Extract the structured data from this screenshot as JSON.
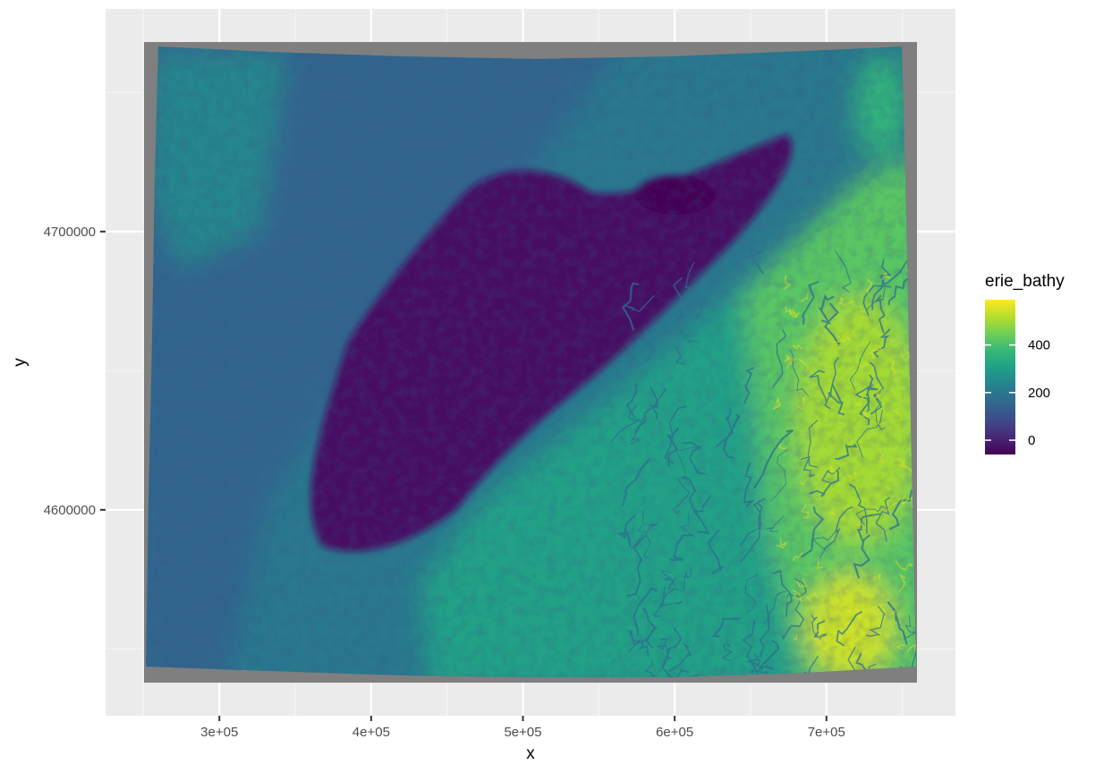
{
  "chart_data": {
    "type": "heatmap",
    "xlabel": "x",
    "ylabel": "y",
    "xlim": [
      225000,
      785000
    ],
    "ylim": [
      4526000,
      4780000
    ],
    "x_ticks": [
      {
        "value": 300000,
        "label": "3e+05"
      },
      {
        "value": 400000,
        "label": "4e+05"
      },
      {
        "value": 500000,
        "label": "5e+05"
      },
      {
        "value": 600000,
        "label": "6e+05"
      },
      {
        "value": 700000,
        "label": "7e+05"
      }
    ],
    "y_ticks": [
      {
        "value": 4600000,
        "label": "4600000"
      },
      {
        "value": 4700000,
        "label": "4700000"
      }
    ],
    "grid": true,
    "colorscale": "viridis",
    "legend": {
      "title": "erie_bathy",
      "placement": "right",
      "min": -60,
      "max": 590,
      "breaks": [
        {
          "value": 0,
          "label": "0"
        },
        {
          "value": 200,
          "label": "200"
        },
        {
          "value": 400,
          "label": "400"
        }
      ]
    },
    "raster_extent": {
      "x": [
        250000,
        752000
      ],
      "y": [
        4531000,
        4768000
      ]
    }
  },
  "colors": {
    "panel_background": "#ebebeb",
    "grid_major": "#ffffff",
    "grid_minor": "#f5f5f5",
    "na_value": "#7f7f7f",
    "viridis_stops": [
      "#440154",
      "#482878",
      "#3e4a89",
      "#31688e",
      "#26828e",
      "#1f9e89",
      "#35b779",
      "#6ece58",
      "#b5de2b",
      "#fde725"
    ]
  }
}
